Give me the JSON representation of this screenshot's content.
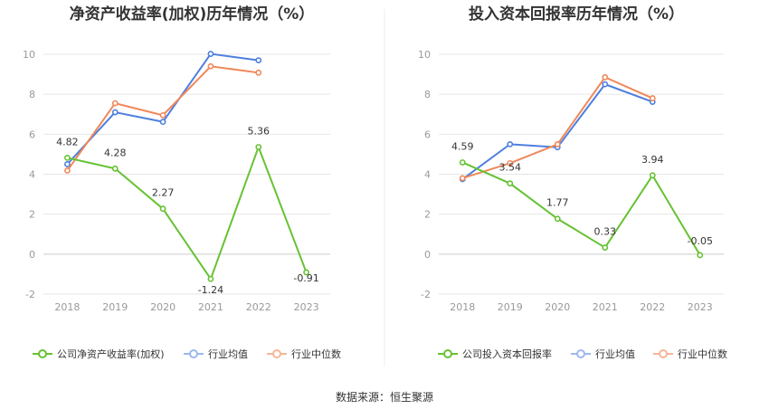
{
  "source": "数据来源：恒生聚源",
  "chart_data": [
    {
      "type": "line",
      "title": "净资产收益率(加权)历年情况（%）",
      "categories": [
        "2018",
        "2019",
        "2020",
        "2021",
        "2022",
        "2023"
      ],
      "ylim": [
        -2,
        10
      ],
      "yticks": [
        -2,
        0,
        2,
        4,
        6,
        8,
        10
      ],
      "grid": true,
      "legend_position": "bottom",
      "series": [
        {
          "name": "公司净资产收益率(加权)",
          "color": "#66c232",
          "values": [
            4.82,
            4.28,
            2.27,
            -1.24,
            5.36,
            -0.91
          ],
          "labels": [
            "4.82",
            "4.28",
            "2.27",
            "-1.24",
            "5.36",
            "-0.91"
          ]
        },
        {
          "name": "行业均值",
          "color": "#4e7fe0",
          "values": [
            4.5,
            7.1,
            6.62,
            10.02,
            9.7,
            null
          ]
        },
        {
          "name": "行业中位数",
          "color": "#f0885a",
          "values": [
            4.18,
            7.55,
            6.95,
            9.4,
            9.08,
            null
          ]
        }
      ]
    },
    {
      "type": "line",
      "title": "投入资本回报率历年情况（%）",
      "categories": [
        "2018",
        "2019",
        "2020",
        "2021",
        "2022",
        "2023"
      ],
      "ylim": [
        -2,
        10
      ],
      "yticks": [
        -2,
        0,
        2,
        4,
        6,
        8,
        10
      ],
      "grid": true,
      "legend_position": "bottom",
      "series": [
        {
          "name": "公司投入资本回报率",
          "color": "#66c232",
          "values": [
            4.59,
            3.54,
            1.77,
            0.33,
            3.94,
            -0.05
          ],
          "labels": [
            "4.59",
            "3.54",
            "1.77",
            "0.33",
            "3.94",
            "-0.05"
          ]
        },
        {
          "name": "行业均值",
          "color": "#4e7fe0",
          "values": [
            3.75,
            5.5,
            5.35,
            8.5,
            7.62,
            null
          ]
        },
        {
          "name": "行业中位数",
          "color": "#f0885a",
          "values": [
            3.8,
            4.55,
            5.5,
            8.85,
            7.8,
            null
          ]
        }
      ]
    }
  ]
}
